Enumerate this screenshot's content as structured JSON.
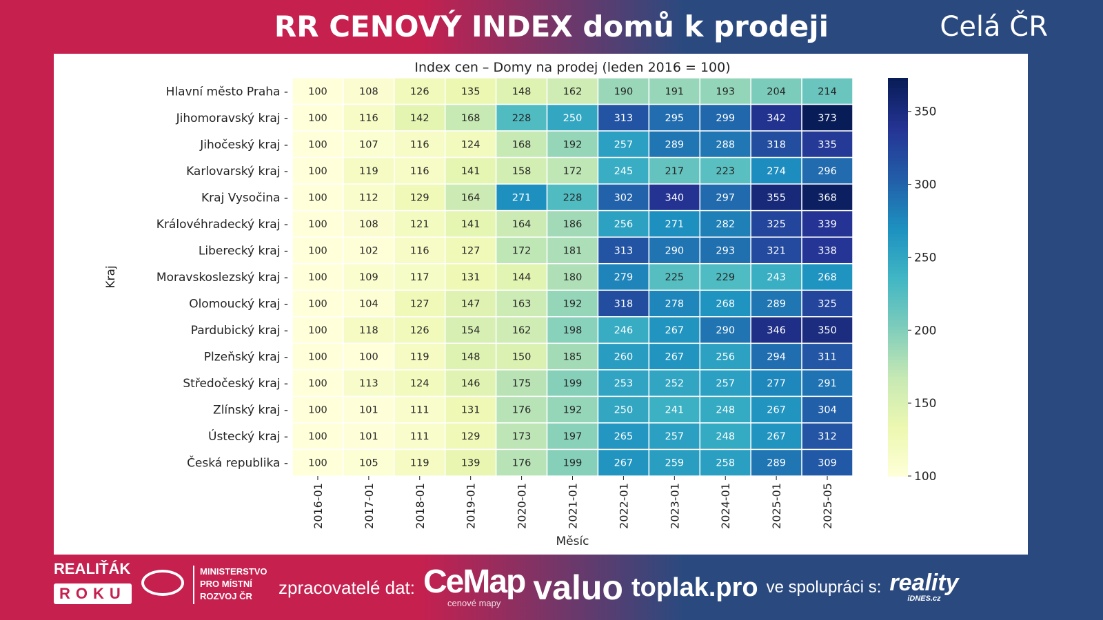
{
  "header": {
    "title": "RR CENOVÝ INDEX domů k prodeji",
    "region": "Celá ČR"
  },
  "chart_data": {
    "type": "heatmap",
    "title": "Index cen – Domy na prodej (leden 2016 = 100)",
    "xlabel": "Měsíc",
    "ylabel": "Kraj",
    "x": [
      "2016-01",
      "2017-01",
      "2018-01",
      "2019-01",
      "2020-01",
      "2021-01",
      "2022-01",
      "2023-01",
      "2024-01",
      "2025-01",
      "2025-05"
    ],
    "y": [
      "Hlavní město Praha",
      "Jihomoravský kraj",
      "Jihočeský kraj",
      "Karlovarský kraj",
      "Kraj Vysočina",
      "Královéhradecký kraj",
      "Liberecký kraj",
      "Moravskoslezský kraj",
      "Olomoucký kraj",
      "Pardubický kraj",
      "Plzeňský kraj",
      "Středočeský kraj",
      "Zlínský kraj",
      "Ústecký kraj",
      "Česká republika"
    ],
    "values": [
      [
        100,
        108,
        126,
        135,
        148,
        162,
        190,
        191,
        193,
        204,
        214
      ],
      [
        100,
        116,
        142,
        168,
        228,
        250,
        313,
        295,
        299,
        342,
        373
      ],
      [
        100,
        107,
        116,
        124,
        168,
        192,
        257,
        289,
        288,
        318,
        335
      ],
      [
        100,
        119,
        116,
        141,
        158,
        172,
        245,
        217,
        223,
        274,
        296
      ],
      [
        100,
        112,
        129,
        164,
        271,
        228,
        302,
        340,
        297,
        355,
        368
      ],
      [
        100,
        108,
        121,
        141,
        164,
        186,
        256,
        271,
        282,
        325,
        339
      ],
      [
        100,
        102,
        116,
        127,
        172,
        181,
        313,
        290,
        293,
        321,
        338
      ],
      [
        100,
        109,
        117,
        131,
        144,
        180,
        279,
        225,
        229,
        243,
        268
      ],
      [
        100,
        104,
        127,
        147,
        163,
        192,
        318,
        278,
        268,
        289,
        325
      ],
      [
        100,
        118,
        126,
        154,
        162,
        198,
        246,
        267,
        290,
        346,
        350
      ],
      [
        100,
        100,
        119,
        148,
        150,
        185,
        260,
        267,
        256,
        294,
        311
      ],
      [
        100,
        113,
        124,
        146,
        175,
        199,
        253,
        252,
        257,
        277,
        291
      ],
      [
        100,
        101,
        111,
        131,
        176,
        192,
        250,
        241,
        248,
        267,
        304
      ],
      [
        100,
        101,
        111,
        129,
        173,
        197,
        265,
        257,
        248,
        267,
        312
      ],
      [
        100,
        105,
        119,
        139,
        176,
        199,
        267,
        259,
        258,
        289,
        309
      ]
    ],
    "colormap": "YlGnBu",
    "vmin": 100,
    "vmax": 373,
    "colorbar_ticks": [
      100,
      150,
      200,
      250,
      300,
      350
    ]
  },
  "footer": {
    "realitak": "REALIŤÁK",
    "roku": "ROKU",
    "ministry": [
      "MINISTERSTVO",
      "PRO MÍSTNÍ",
      "ROZVOJ ČR"
    ],
    "processors_label": "zpracovatelé dat:",
    "cemap": "CeMap",
    "cemap_sub": "cenové mapy",
    "valuo": "valuo",
    "toplak": "toplak.pro",
    "cooperation_label": "ve spolupráci s:",
    "reality": "reality",
    "reality_sub": "iDNES.cz"
  }
}
